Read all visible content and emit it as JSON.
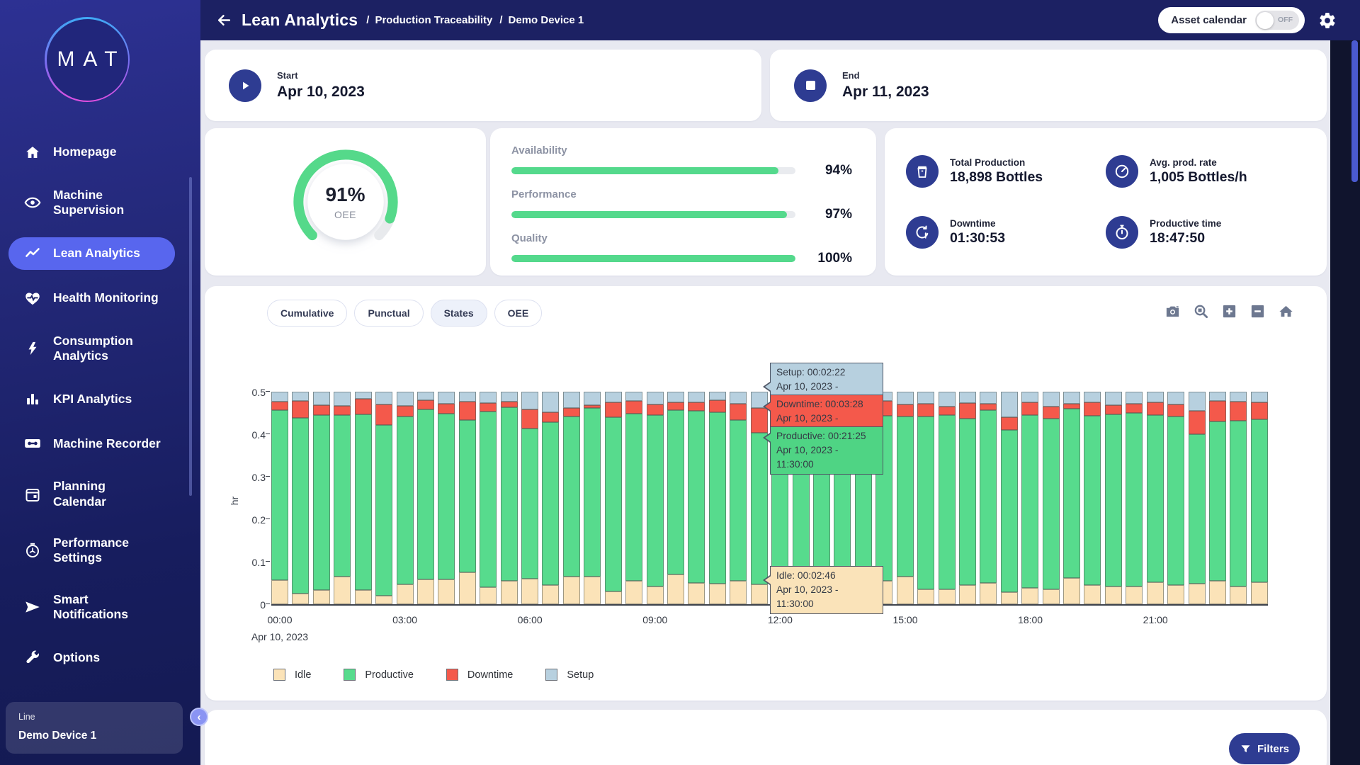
{
  "app": {
    "logo_text": "MAT"
  },
  "sidebar": {
    "items": [
      {
        "label": "Homepage",
        "icon": "home-icon",
        "active": false
      },
      {
        "label": "Machine\nSupervision",
        "icon": "eye-icon",
        "active": false
      },
      {
        "label": "Lean Analytics",
        "icon": "trend-icon",
        "active": true
      },
      {
        "label": "Health Monitoring",
        "icon": "heart-pulse-icon",
        "active": false
      },
      {
        "label": "Consumption\nAnalytics",
        "icon": "lightning-icon",
        "active": false
      },
      {
        "label": "KPI Analytics",
        "icon": "bar-chart-icon",
        "active": false
      },
      {
        "label": "Machine Recorder",
        "icon": "cassette-icon",
        "active": false
      },
      {
        "label": "Planning\nCalendar",
        "icon": "calendar-icon",
        "active": false
      },
      {
        "label": "Performance\nSettings",
        "icon": "gauge-icon",
        "active": false
      },
      {
        "label": "Smart\nNotifications",
        "icon": "send-icon",
        "active": false
      },
      {
        "label": "Options",
        "icon": "wrench-icon",
        "active": false
      }
    ],
    "device_panel": {
      "label": "Line",
      "value": "Demo Device 1"
    }
  },
  "header": {
    "title": "Lean Analytics",
    "breadcrumb_separator": "/",
    "breadcrumbs": [
      "Production Traceability",
      "Demo Device 1"
    ],
    "asset_calendar": {
      "label": "Asset calendar",
      "state": "OFF"
    }
  },
  "period": {
    "start": {
      "label": "Start",
      "date": "Apr 10, 2023"
    },
    "end": {
      "label": "End",
      "date": "Apr 11, 2023"
    }
  },
  "oee_gauge": {
    "value": "91%",
    "label": "OEE",
    "percent": 91
  },
  "kpi_bars": [
    {
      "label": "Availability",
      "value": "94%",
      "percent": 94
    },
    {
      "label": "Performance",
      "value": "97%",
      "percent": 97
    },
    {
      "label": "Quality",
      "value": "100%",
      "percent": 100
    }
  ],
  "stats": [
    {
      "label": "Total Production",
      "value": "18,898 Bottles",
      "icon": "production-icon"
    },
    {
      "label": "Avg. prod. rate",
      "value": "1,005 Bottles/h",
      "icon": "speedometer-icon"
    },
    {
      "label": "Downtime",
      "value": "01:30:53",
      "icon": "downtime-icon"
    },
    {
      "label": "Productive time",
      "value": "18:47:50",
      "icon": "stopwatch-icon"
    }
  ],
  "chart_tabs": {
    "items": [
      "Cumulative",
      "Punctual",
      "States",
      "OEE"
    ],
    "active": "States"
  },
  "chart_toolbar": {
    "icons": [
      "camera-icon",
      "zoom-icon",
      "zoom-in-icon",
      "zoom-out-icon",
      "home-icon"
    ]
  },
  "chart_data": {
    "type": "bar",
    "stacked": true,
    "ylabel": "hr",
    "ylim": [
      0,
      0.5
    ],
    "y_ticks": [
      0,
      0.1,
      0.2,
      0.3,
      0.4,
      0.5
    ],
    "x_ticks": [
      "00:00",
      "03:00",
      "06:00",
      "09:00",
      "12:00",
      "15:00",
      "18:00",
      "21:00"
    ],
    "x_date_label": "Apr 10, 2023",
    "legend_position": "bottom",
    "categories": [
      "00:00",
      "00:30",
      "01:00",
      "01:30",
      "02:00",
      "02:30",
      "03:00",
      "03:30",
      "04:00",
      "04:30",
      "05:00",
      "05:30",
      "06:00",
      "06:30",
      "07:00",
      "07:30",
      "08:00",
      "08:30",
      "09:00",
      "09:30",
      "10:00",
      "10:30",
      "11:00",
      "11:30",
      "12:00",
      "12:30",
      "13:00",
      "13:30",
      "14:00",
      "14:30",
      "15:00",
      "15:30",
      "16:00",
      "16:30",
      "17:00",
      "17:30",
      "18:00",
      "18:30",
      "19:00",
      "19:30",
      "20:00",
      "20:30",
      "21:00",
      "21:30",
      "22:00",
      "22:30",
      "23:00",
      "23:30"
    ],
    "series": [
      {
        "name": "Idle",
        "color": "#fbe3b8",
        "values": [
          0.056,
          0.025,
          0.033,
          0.065,
          0.034,
          0.02,
          0.046,
          0.058,
          0.058,
          0.075,
          0.04,
          0.055,
          0.06,
          0.045,
          0.065,
          0.065,
          0.03,
          0.055,
          0.042,
          0.07,
          0.05,
          0.048,
          0.055,
          0.046,
          0.045,
          0.05,
          0.042,
          0.048,
          0.04,
          0.055,
          0.065,
          0.035,
          0.035,
          0.045,
          0.05,
          0.028,
          0.038,
          0.035,
          0.062,
          0.045,
          0.042,
          0.042,
          0.052,
          0.045,
          0.048,
          0.055,
          0.042,
          0.052
        ]
      },
      {
        "name": "Productive",
        "color": "#57db8d",
        "values": [
          0.401,
          0.414,
          0.412,
          0.38,
          0.413,
          0.401,
          0.396,
          0.4,
          0.39,
          0.359,
          0.413,
          0.409,
          0.353,
          0.384,
          0.377,
          0.396,
          0.41,
          0.393,
          0.403,
          0.387,
          0.405,
          0.404,
          0.379,
          0.357,
          0.405,
          0.4,
          0.415,
          0.397,
          0.38,
          0.388,
          0.377,
          0.407,
          0.41,
          0.391,
          0.407,
          0.382,
          0.407,
          0.402,
          0.398,
          0.398,
          0.404,
          0.408,
          0.393,
          0.397,
          0.352,
          0.375,
          0.39,
          0.383
        ]
      },
      {
        "name": "Downtime",
        "color": "#f4594b",
        "values": [
          0.019,
          0.039,
          0.024,
          0.021,
          0.037,
          0.049,
          0.024,
          0.022,
          0.024,
          0.043,
          0.02,
          0.012,
          0.046,
          0.023,
          0.02,
          0.008,
          0.035,
          0.03,
          0.025,
          0.018,
          0.02,
          0.028,
          0.038,
          0.058,
          0.02,
          0.022,
          0.018,
          0.025,
          0.045,
          0.035,
          0.028,
          0.03,
          0.02,
          0.038,
          0.015,
          0.03,
          0.03,
          0.028,
          0.012,
          0.032,
          0.022,
          0.022,
          0.03,
          0.028,
          0.055,
          0.048,
          0.045,
          0.04
        ]
      },
      {
        "name": "Setup",
        "color": "#b7d0df",
        "values": [
          0.024,
          0.022,
          0.031,
          0.034,
          0.016,
          0.03,
          0.034,
          0.02,
          0.028,
          0.023,
          0.027,
          0.024,
          0.041,
          0.048,
          0.038,
          0.031,
          0.025,
          0.022,
          0.03,
          0.025,
          0.025,
          0.02,
          0.028,
          0.039,
          0.03,
          0.028,
          0.025,
          0.03,
          0.035,
          0.022,
          0.03,
          0.028,
          0.035,
          0.026,
          0.028,
          0.06,
          0.025,
          0.035,
          0.028,
          0.025,
          0.032,
          0.028,
          0.025,
          0.03,
          0.045,
          0.022,
          0.023,
          0.025
        ]
      }
    ],
    "legend": [
      "Idle",
      "Productive",
      "Downtime",
      "Setup"
    ]
  },
  "tooltips": [
    {
      "series": "Setup",
      "title": "Setup: 00:02:22",
      "subtitle": "Apr 10, 2023 - 11:30:00",
      "color": "#b7d0df"
    },
    {
      "series": "Downtime",
      "title": "Downtime: 00:03:28",
      "subtitle": "Apr 10, 2023 - 11:30:00",
      "color": "#f4594b"
    },
    {
      "series": "Productive",
      "title": "Productive: 00:21:25",
      "subtitle": "Apr 10, 2023 - 11:30:00",
      "color": "#4fd484"
    },
    {
      "series": "Idle",
      "title": "Idle: 00:02:46",
      "subtitle": "Apr 10, 2023 - 11:30:00",
      "color": "#fae3b9"
    }
  ],
  "filters": {
    "label": "Filters"
  },
  "colors": {
    "accent": "#5866ee",
    "header_bg": "#1c2163",
    "stat_icon_bg": "#2e3c92",
    "green": "#54d98c",
    "page_bg": "#e8e9f1",
    "idle": "#fbe3b8",
    "productive": "#57db8d",
    "downtime": "#f4594b",
    "setup": "#b7d0df"
  }
}
